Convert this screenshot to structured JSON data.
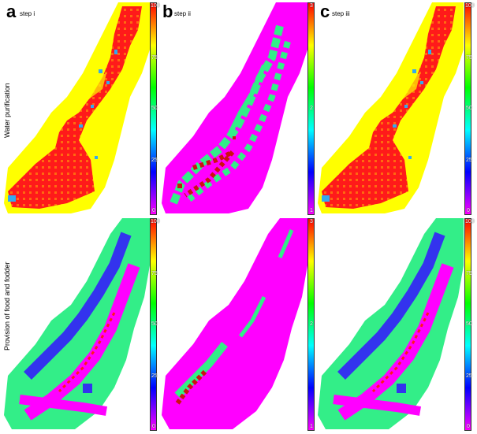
{
  "panels": {
    "a": {
      "letter": "a",
      "step": "step i"
    },
    "b": {
      "letter": "b",
      "step": "step ii"
    },
    "c": {
      "letter": "c",
      "step": "step iii"
    }
  },
  "rows": [
    {
      "label": "Water purification"
    },
    {
      "label": "Provision of food and fodder"
    }
  ],
  "colorbars": {
    "percent_ticks": [
      "100",
      "75",
      "50",
      "25",
      "0"
    ],
    "class_ticks": [
      "3",
      "2",
      "1"
    ]
  },
  "colors": {
    "red": "#ff1a1a",
    "yellow": "#ffff00",
    "magenta": "#ff00ff",
    "green": "#33ee88",
    "blue": "#3333ee",
    "cyan": "#33aaee",
    "darkred": "#cc1111"
  }
}
